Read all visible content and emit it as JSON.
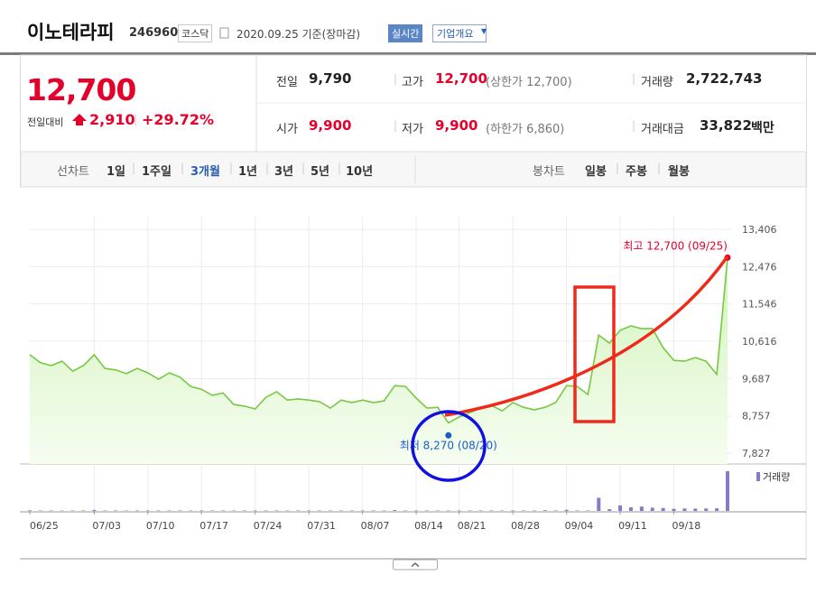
{
  "header": {
    "title": "이노테라피",
    "code": "246960",
    "market": "코스닥",
    "date": "2020.09.25 기준(장마감)",
    "realtime": "실시간",
    "company": "기업개요"
  },
  "price": {
    "current": "12,700",
    "change_label": "전일대비",
    "change": "2,910",
    "change_rate": "+29.72%"
  },
  "stats": [
    [
      {
        "label": "전일",
        "value": "9,790"
      },
      {
        "label": "고가",
        "value": "12,700",
        "note": "(상한가 12,700)"
      },
      {
        "label": "거래량",
        "value": "2,722,743"
      }
    ],
    [
      {
        "label": "시가",
        "value": "9,900"
      },
      {
        "label": "저가",
        "value": "9,900",
        "note": "(하한가 6,860)"
      },
      {
        "label": "거래대금",
        "value": "33,822",
        "unit": "백만"
      }
    ]
  ],
  "tabs": {
    "line_label": "선차트",
    "line": [
      "1일",
      "1주일",
      "3개월",
      "1년",
      "3년",
      "5년",
      "10년"
    ],
    "candle_label": "봉차트",
    "candle": [
      "일봉",
      "주봉",
      "월봉"
    ]
  },
  "chart_data": {
    "type": "line",
    "color": "#76c943",
    "grid": true,
    "categories": [
      "06/25",
      null,
      null,
      null,
      null,
      null,
      "07/03",
      null,
      null,
      null,
      null,
      "07/10",
      null,
      null,
      null,
      null,
      "07/17",
      null,
      null,
      null,
      null,
      "07/24",
      null,
      null,
      null,
      null,
      "07/31",
      null,
      null,
      null,
      null,
      "08/07",
      null,
      null,
      null,
      null,
      "08/14",
      null,
      null,
      null,
      "08/21",
      null,
      null,
      null,
      null,
      "08/28",
      null,
      null,
      null,
      null,
      "09/04",
      null,
      null,
      null,
      null,
      "09/11",
      null,
      null,
      null,
      null,
      "09/18",
      null,
      null,
      null,
      null,
      null
    ],
    "values": [
      10280,
      10080,
      10010,
      10120,
      9870,
      10010,
      10280,
      9940,
      9900,
      9810,
      9940,
      9830,
      9670,
      9830,
      9720,
      9490,
      9420,
      9270,
      9330,
      9040,
      9000,
      8930,
      9220,
      9360,
      9150,
      9180,
      9150,
      9110,
      8950,
      9150,
      9090,
      9150,
      9090,
      9130,
      9510,
      9490,
      9200,
      8950,
      8970,
      8580,
      8730,
      8840,
      8950,
      9020,
      8880,
      9090,
      8970,
      8910,
      8970,
      9090,
      9510,
      9490,
      9290,
      10770,
      10570,
      10890,
      11000,
      10930,
      10930,
      10460,
      10140,
      10120,
      10210,
      10120,
      9790,
      12700
    ],
    "volume": {
      "name": "거래량",
      "color": "#8a78c8",
      "values": [
        40000,
        30000,
        30000,
        25000,
        30000,
        30000,
        70000,
        30000,
        30000,
        30000,
        30000,
        30000,
        30000,
        30000,
        30000,
        30000,
        30000,
        30000,
        30000,
        30000,
        30000,
        30000,
        30000,
        30000,
        30000,
        30000,
        30000,
        30000,
        30000,
        30000,
        30000,
        30000,
        30000,
        30000,
        60000,
        30000,
        30000,
        30000,
        30000,
        30000,
        30000,
        30000,
        30000,
        30000,
        30000,
        30000,
        30000,
        30000,
        50000,
        30000,
        80000,
        30000,
        30000,
        900000,
        120000,
        380000,
        250000,
        300000,
        220000,
        200000,
        150000,
        170000,
        160000,
        170000,
        180000,
        2722743
      ]
    },
    "ylim": [
      7557,
      13721
    ],
    "yticks": [
      {
        "value": 13406,
        "label": "13,406"
      },
      {
        "value": 12476,
        "label": "12,476"
      },
      {
        "value": 11546,
        "label": "11,546"
      },
      {
        "value": 10616,
        "label": "10,616"
      },
      {
        "value": 9687,
        "label": "9,687"
      },
      {
        "value": 8757,
        "label": "8,757"
      },
      {
        "value": 7827,
        "label": "7,827"
      }
    ],
    "annotations": [
      {
        "text": "최고 12,700 (09/25)",
        "value": 12700,
        "color": "#e4002b"
      },
      {
        "text": "최저 8,270 (08/20)",
        "value": 8270,
        "color": "#1a5cc8"
      }
    ]
  }
}
